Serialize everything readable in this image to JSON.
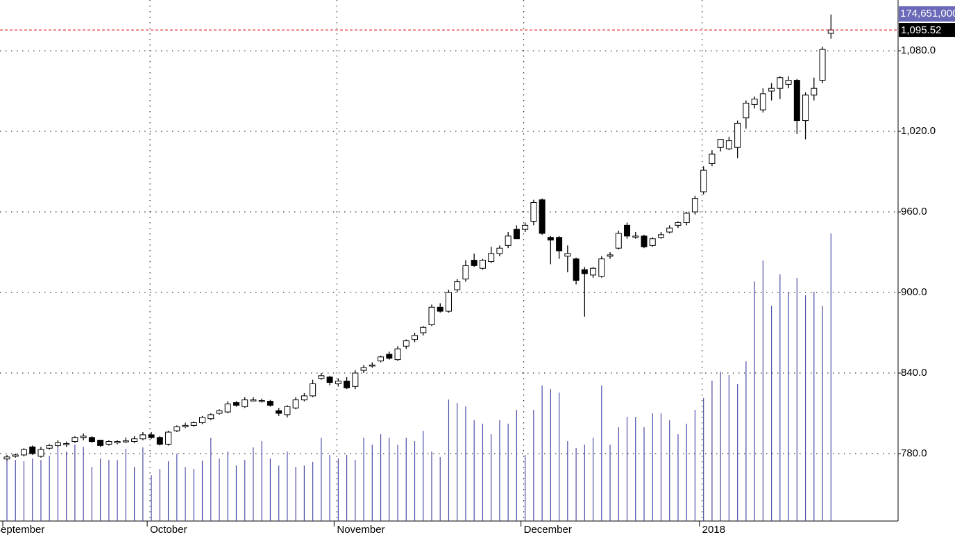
{
  "chart_data": {
    "type": "candlestick",
    "categories": [
      "September",
      null,
      null,
      null,
      null,
      null,
      null,
      null,
      null,
      null,
      null,
      null,
      null,
      null,
      null,
      null,
      null,
      "October",
      null,
      null,
      null,
      null,
      null,
      null,
      null,
      null,
      null,
      null,
      null,
      null,
      null,
      null,
      null,
      null,
      null,
      null,
      null,
      null,
      null,
      "November",
      null,
      null,
      null,
      null,
      null,
      null,
      null,
      null,
      null,
      null,
      null,
      null,
      null,
      null,
      null,
      null,
      null,
      null,
      null,
      null,
      null,
      "December",
      null,
      null,
      null,
      null,
      null,
      null,
      null,
      null,
      null,
      null,
      null,
      null,
      null,
      null,
      null,
      null,
      null,
      null,
      null,
      null,
      "2018",
      null,
      null,
      null,
      null,
      null,
      null,
      null,
      null,
      null,
      null,
      null,
      null,
      null,
      null,
      null
    ],
    "open": [
      776,
      778,
      779,
      785,
      778,
      784,
      786,
      787,
      789,
      792,
      792,
      790,
      787,
      788,
      789,
      789,
      791,
      794,
      792,
      787,
      797,
      800,
      801,
      803,
      806,
      810,
      811,
      818,
      815,
      820,
      819,
      819,
      812,
      809,
      814,
      820,
      823,
      836,
      837,
      832,
      834,
      830,
      842,
      846,
      849,
      854,
      850,
      860,
      865,
      870,
      876,
      889,
      886,
      902,
      910,
      924,
      918,
      923,
      929,
      935,
      947,
      947,
      953,
      969,
      941,
      941,
      927,
      925,
      917,
      913,
      912,
      927,
      933,
      950,
      942,
      942,
      935,
      941,
      945,
      950,
      952,
      960,
      975,
      996,
      1008,
      1007,
      1008,
      1030,
      1040,
      1036,
      1050,
      1052,
      1055,
      1058,
      1028,
      1047,
      1058,
      1093
    ],
    "high": [
      779,
      780,
      784,
      786,
      785,
      787,
      790,
      789,
      793,
      795,
      793,
      790,
      790,
      790,
      792,
      793,
      796,
      796,
      793,
      797,
      801,
      803,
      804,
      808,
      810,
      813,
      819,
      819,
      822,
      822,
      821,
      820,
      814,
      816,
      822,
      825,
      835,
      840,
      838,
      836,
      837,
      842,
      846,
      848,
      853,
      856,
      860,
      865,
      870,
      875,
      891,
      892,
      902,
      910,
      924,
      929,
      925,
      934,
      935,
      945,
      950,
      952,
      969,
      970,
      942,
      942,
      935,
      926,
      919,
      919,
      927,
      930,
      946,
      952,
      945,
      943,
      941,
      945,
      950,
      953,
      960,
      972,
      994,
      1006,
      1014,
      1016,
      1028,
      1043,
      1046,
      1052,
      1056,
      1061,
      1061,
      1059,
      1049,
      1060,
      1083,
      1107
    ],
    "low": [
      775,
      777,
      778,
      779,
      777,
      783,
      785,
      785,
      788,
      790,
      788,
      785,
      786,
      787,
      788,
      788,
      790,
      791,
      786,
      786,
      796,
      799,
      800,
      802,
      805,
      809,
      810,
      815,
      814,
      819,
      818,
      815,
      808,
      807,
      813,
      819,
      822,
      835,
      831,
      830,
      828,
      828,
      840,
      844,
      848,
      850,
      849,
      858,
      863,
      868,
      875,
      885,
      885,
      900,
      908,
      919,
      917,
      922,
      927,
      933,
      940,
      945,
      950,
      943,
      921,
      925,
      915,
      906,
      882,
      911,
      911,
      925,
      932,
      940,
      940,
      933,
      934,
      940,
      944,
      948,
      950,
      958,
      973,
      994,
      1005,
      1006,
      1000,
      1022,
      1037,
      1034,
      1043,
      1044,
      1052,
      1018,
      1014,
      1043,
      1056,
      1089
    ],
    "close": [
      777.5,
      779,
      783,
      780,
      783,
      786,
      788,
      787.5,
      792,
      793,
      789,
      786,
      789,
      789,
      789.5,
      791,
      794,
      792,
      787,
      796,
      800,
      801,
      803,
      807,
      809,
      812,
      817,
      816,
      820,
      820,
      819.5,
      816,
      810,
      815,
      820,
      823,
      832,
      838,
      833,
      834,
      829,
      840,
      844,
      846,
      852,
      851,
      858,
      864,
      868,
      874,
      889,
      886,
      900,
      908,
      920,
      920,
      924,
      929,
      933,
      942,
      940,
      950,
      967,
      944,
      939,
      931,
      929,
      909,
      914,
      918,
      925,
      928,
      944,
      942,
      942,
      934,
      940,
      943,
      948,
      952,
      959,
      970,
      991,
      1003,
      1014,
      1013,
      1026,
      1041,
      1044,
      1048,
      1052,
      1060,
      1058,
      1028,
      1047,
      1052,
      1081,
      1095.52
    ],
    "volume": [
      37970000,
      37100000,
      36300000,
      37970000,
      37100000,
      39700000,
      46400000,
      42200000,
      46400000,
      45100000,
      32900000,
      37970000,
      37100000,
      37100000,
      43900000,
      32900000,
      44700000,
      27800000,
      31600000,
      36300000,
      40900000,
      32900000,
      31600000,
      36700000,
      50600000,
      37970000,
      42200000,
      33700000,
      37100000,
      44700000,
      48500000,
      37970000,
      33700000,
      42200000,
      32900000,
      33700000,
      35900000,
      50600000,
      40100000,
      37970000,
      40100000,
      37100000,
      50600000,
      46400000,
      52700000,
      50600000,
      46400000,
      50600000,
      48500000,
      54800000,
      42200000,
      38800000,
      73800000,
      71700000,
      69600000,
      61200000,
      59100000,
      52700000,
      61200000,
      59100000,
      67500000,
      40100000,
      67500000,
      82300000,
      80200000,
      78000000,
      48500000,
      44300000,
      46400000,
      50600000,
      82300000,
      46400000,
      57000000,
      63300000,
      63300000,
      57000000,
      65400000,
      65400000,
      61200000,
      52700000,
      59100000,
      67500000,
      74700000,
      85200000,
      90700000,
      88600000,
      83100000,
      97000000,
      145500000,
      158200000,
      130800000,
      149800000,
      139200000,
      147700000,
      137100000,
      139200000,
      130800000,
      174651000
    ],
    "ylim": [
      729.8,
      1117.8
    ],
    "yticks": [
      {
        "value": 780,
        "label": "780.0"
      },
      {
        "value": 840,
        "label": "840.0"
      },
      {
        "value": 900,
        "label": "900.0"
      },
      {
        "value": 960,
        "label": "960.0"
      },
      {
        "value": 1020,
        "label": "1,020.0"
      },
      {
        "value": 1080,
        "label": "1,080.0"
      }
    ],
    "y2lim": [
      0,
      316400000
    ],
    "grid": true,
    "up_color": "#ffffff",
    "down_color": "#000000",
    "volume_color": "#4b4ba8",
    "last_price": {
      "value": 1095.52,
      "label": "1,095.52"
    },
    "last_volume": {
      "value": 174651000,
      "label": "174,651,000"
    }
  }
}
